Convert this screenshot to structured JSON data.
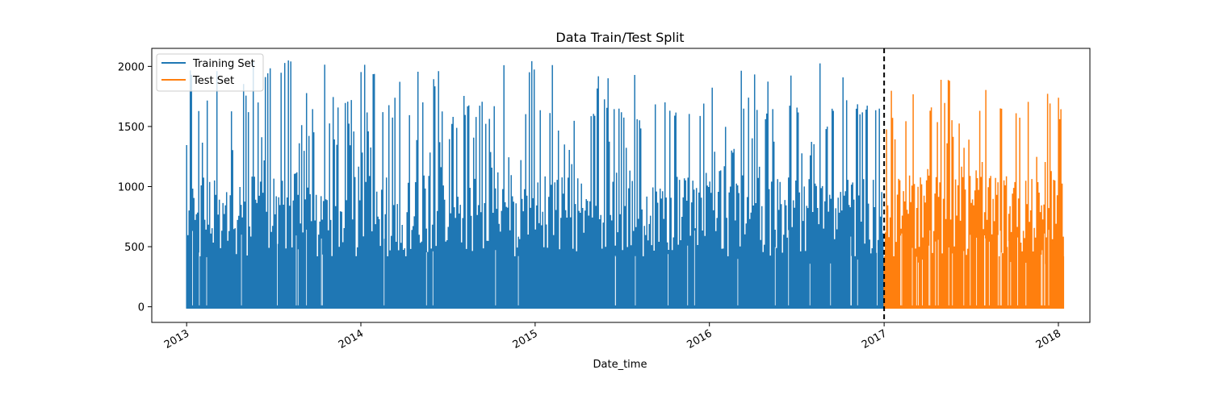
{
  "chart_data": {
    "type": "line",
    "title": "Data Train/Test Split",
    "xlabel": "Date_time",
    "ylabel": "",
    "xlim": [
      "2012-10-20",
      "2018-03-08"
    ],
    "ylim": [
      -130,
      2150
    ],
    "x_ticks": [
      "2013",
      "2014",
      "2015",
      "2016",
      "2017",
      "2018"
    ],
    "y_ticks": [
      0,
      500,
      1000,
      1500,
      2000
    ],
    "split_date": "2017-01-01",
    "legend_position": "top-left",
    "grid": false,
    "series": [
      {
        "name": "Training Set",
        "color": "#1f77b4",
        "x_start": "2013-01-01",
        "x_end": "2016-12-31",
        "y_min": -15,
        "y_max": 2060
      },
      {
        "name": "Test Set",
        "color": "#ff7f0e",
        "x_start": "2017-01-01",
        "x_end": "2018-01-13",
        "y_min": -15,
        "y_max": 2050
      }
    ]
  }
}
